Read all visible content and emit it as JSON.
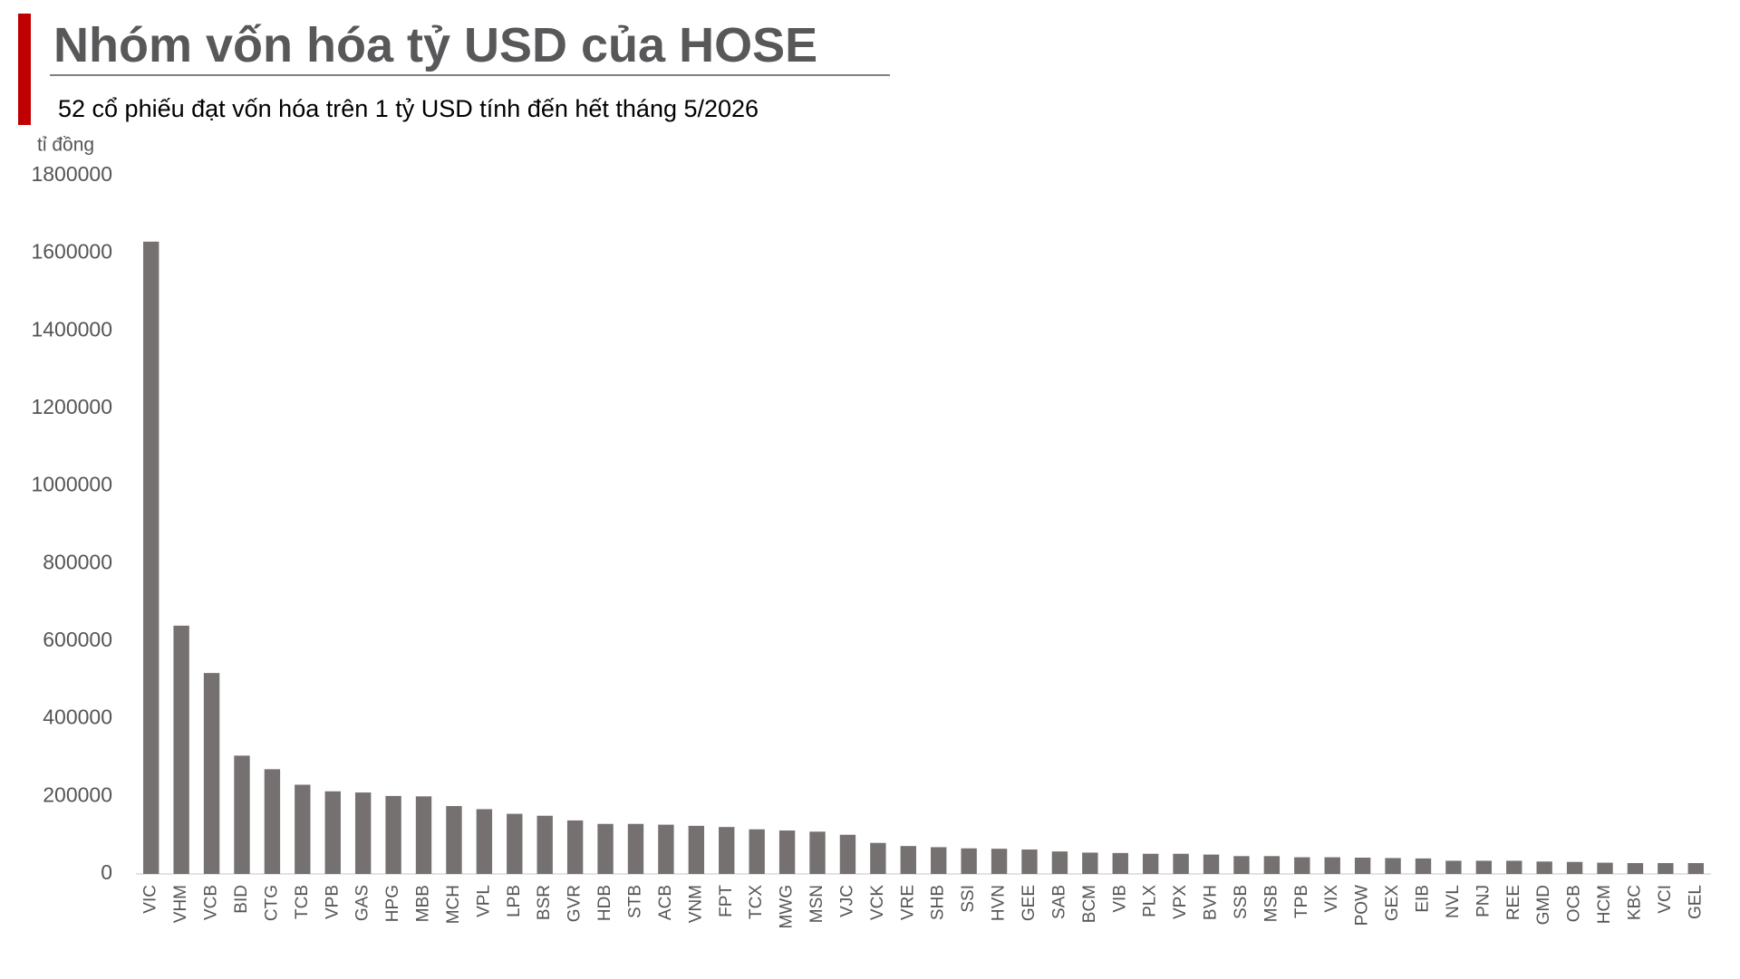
{
  "chart_data": {
    "type": "bar",
    "title": "Nhóm vốn hóa tỷ USD của HOSE",
    "subtitle": "52 cổ phiếu đạt vốn hóa trên 1 tỷ USD tính đến hết tháng 5/2026",
    "y_label": "tỉ đồng",
    "categories": [
      "VIC",
      "VHM",
      "VCB",
      "BID",
      "CTG",
      "TCB",
      "VPB",
      "GAS",
      "HPG",
      "MBB",
      "MCH",
      "VPL",
      "LPB",
      "BSR",
      "GVR",
      "HDB",
      "STB",
      "ACB",
      "VNM",
      "FPT",
      "TCX",
      "MWG",
      "MSN",
      "VJC",
      "VCK",
      "VRE",
      "SHB",
      "SSI",
      "HVN",
      "GEE",
      "SAB",
      "BCM",
      "VIB",
      "PLX",
      "VPX",
      "BVH",
      "SSB",
      "MSB",
      "TPB",
      "VIX",
      "POW",
      "GEX",
      "EIB",
      "NVL",
      "PNJ",
      "REE",
      "GMD",
      "OCB",
      "HCM",
      "KBC",
      "VCI",
      "GEL"
    ],
    "values": [
      1630000,
      640000,
      518000,
      305000,
      270000,
      230000,
      213000,
      210000,
      201000,
      200000,
      175000,
      167000,
      155000,
      150000,
      138000,
      129000,
      129000,
      127000,
      124000,
      121000,
      115000,
      112000,
      109000,
      101000,
      80000,
      72000,
      69000,
      66000,
      65000,
      63000,
      58000,
      55000,
      54000,
      52000,
      52000,
      50000,
      46000,
      46000,
      43000,
      43000,
      42000,
      41000,
      40000,
      34000,
      34000,
      34000,
      32000,
      31000,
      29000,
      28000,
      28000,
      28000
    ],
    "color": "#767171",
    "ylim": [
      0,
      1800000
    ],
    "yticks": [
      0,
      200000,
      400000,
      600000,
      800000,
      1000000,
      1200000,
      1400000,
      1600000,
      1800000
    ],
    "grid": false
  }
}
